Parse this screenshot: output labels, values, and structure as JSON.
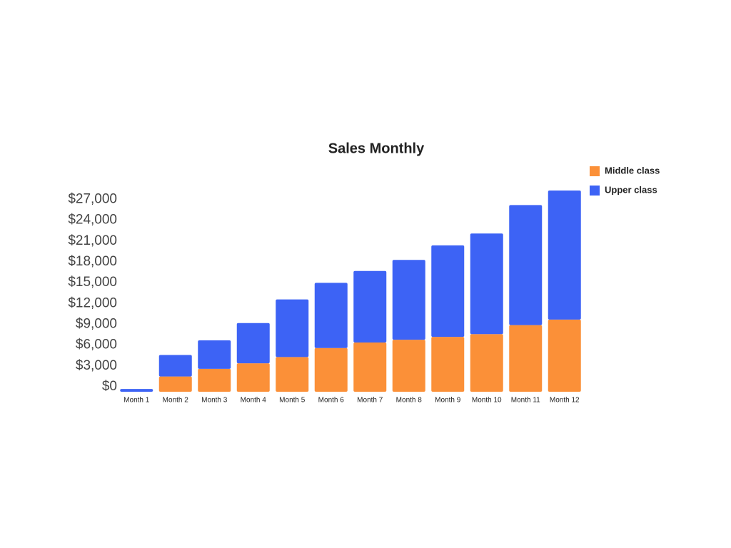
{
  "chart_data": {
    "type": "bar",
    "stacked": true,
    "title": "Sales Monthly",
    "categories": [
      "Month 1",
      "Month 2",
      "Month 3",
      "Month 4",
      "Month 5",
      "Month 6",
      "Month 7",
      "Month 8",
      "Month 9",
      "Month 10",
      "Month 11",
      "Month 12"
    ],
    "series": [
      {
        "name": "Middle class",
        "color": "#fb9038",
        "values": [
          0,
          2200,
          3300,
          4100,
          5000,
          6300,
          7100,
          7500,
          7900,
          8300,
          9600,
          10400
        ]
      },
      {
        "name": "Upper class",
        "color": "#3d63f5",
        "values": [
          400,
          3100,
          4100,
          5800,
          8300,
          9400,
          10300,
          11500,
          13200,
          14500,
          17300,
          18600
        ]
      }
    ],
    "ylim": [
      0,
      29000
    ],
    "yticks": [
      {
        "value": 0,
        "label": "$0"
      },
      {
        "value": 3000,
        "label": "$3,000"
      },
      {
        "value": 6000,
        "label": "$6,000"
      },
      {
        "value": 9000,
        "label": "$9,000"
      },
      {
        "value": 12000,
        "label": "$12,000"
      },
      {
        "value": 15000,
        "label": "$15,000"
      },
      {
        "value": 18000,
        "label": "$18,000"
      },
      {
        "value": 21000,
        "label": "$21,000"
      },
      {
        "value": 24000,
        "label": "$24,000"
      },
      {
        "value": 27000,
        "label": "$27,000"
      }
    ],
    "grid": false,
    "legend": "top-right"
  }
}
